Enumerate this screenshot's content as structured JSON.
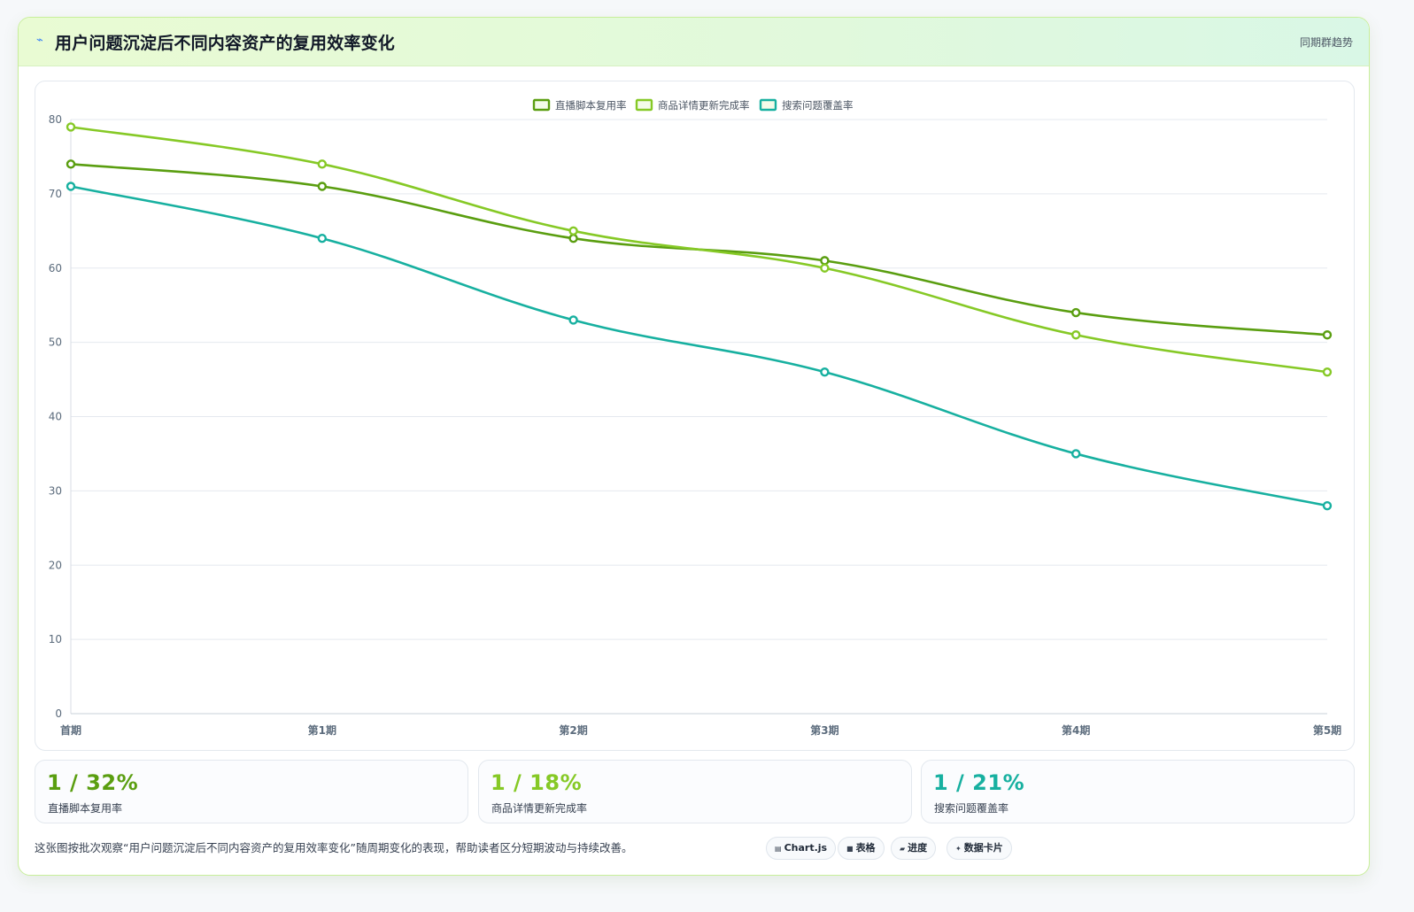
{
  "header": {
    "icon": "lightning-icon",
    "title": "用户问题沉淀后不同内容资产的复用效率变化",
    "tag": "同期群趋势"
  },
  "colors": {
    "series1": "#5a9e10",
    "series2": "#86c926",
    "series3": "#17b0a0",
    "grid": "#e5e9ef",
    "axis_text": "#5b6b7c"
  },
  "chart_data": {
    "type": "line",
    "title": "",
    "xlabel": "",
    "ylabel": "",
    "categories": [
      "首期",
      "第1期",
      "第2期",
      "第3期",
      "第4期",
      "第5期"
    ],
    "ylim": [
      0,
      80
    ],
    "yticks": [
      0,
      10,
      20,
      30,
      40,
      50,
      60,
      70,
      80
    ],
    "grid": true,
    "legend": "top-center",
    "series": [
      {
        "name": "直播脚本复用率",
        "values": [
          74,
          71,
          64,
          61,
          54,
          51
        ]
      },
      {
        "name": "商品详情更新完成率",
        "values": [
          79,
          74,
          65,
          60,
          51,
          46
        ]
      },
      {
        "name": "搜索问题覆盖率",
        "values": [
          71,
          64,
          53,
          46,
          35,
          28
        ]
      }
    ]
  },
  "stats": [
    {
      "value": "1 / 32%",
      "label": "直播脚本复用率"
    },
    {
      "value": "1 / 18%",
      "label": "商品详情更新完成率"
    },
    {
      "value": "1 / 21%",
      "label": "搜索问题覆盖率"
    }
  ],
  "footer": {
    "note": "这张图按批次观察“用户问题沉淀后不同内容资产的复用效率变化”随周期变化的表现，帮助读者区分短期波动与持续改善。",
    "chips": [
      {
        "icon": "chart-icon",
        "label": "Chart.js"
      },
      {
        "icon": "table-icon",
        "label": "表格"
      },
      {
        "icon": "progress-icon",
        "label": "进度"
      },
      {
        "icon": "sparkle-icon",
        "label": "数据卡片"
      }
    ]
  }
}
